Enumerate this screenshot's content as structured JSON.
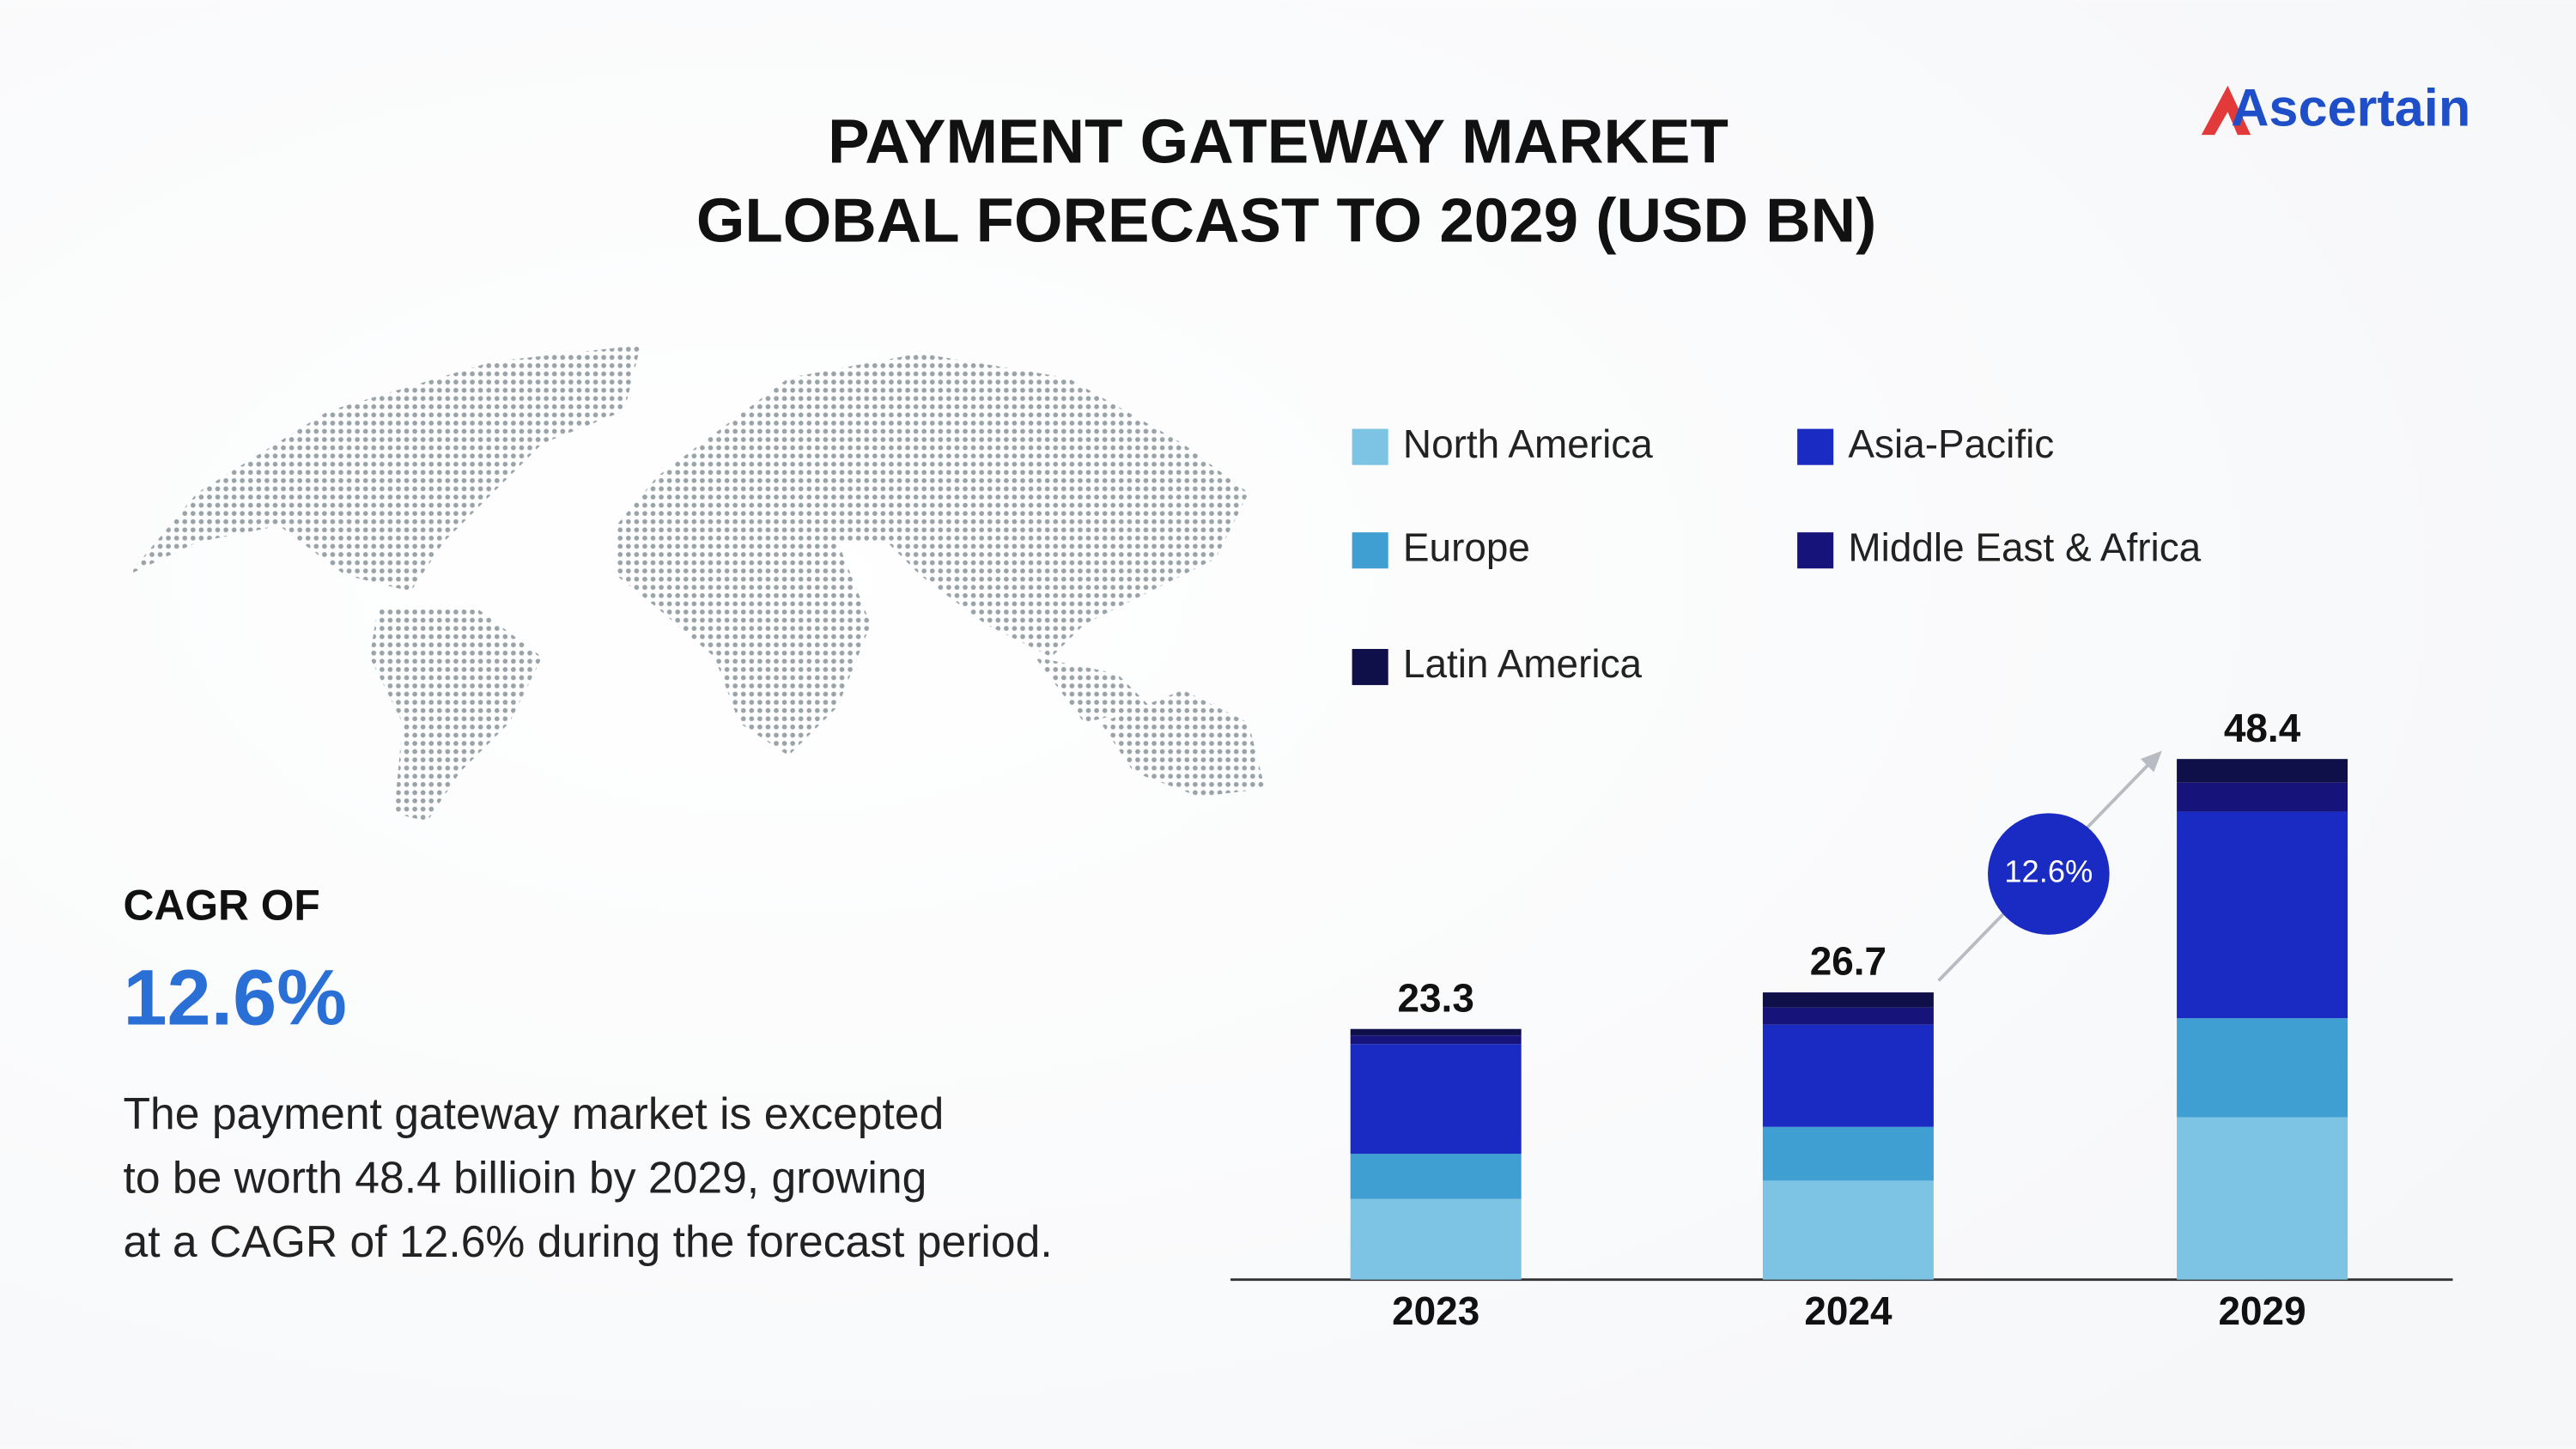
{
  "title_lines": [
    "PAYMENT GATEWAY MARKET",
    "GLOBAL FORECAST TO 2029 (USD BN)"
  ],
  "brand": "Ascertain",
  "cagr_heading": "CAGR OF",
  "cagr_value": "12.6%",
  "description": [
    "The payment gateway market is excepted",
    "to be worth 48.4 billioin by 2029, growing",
    "at a CAGR of 12.6% during  the forecast period."
  ],
  "growth_badge": "12.6%",
  "chart_data": {
    "type": "stacked_bar",
    "categories": [
      "2023",
      "2024",
      "2029"
    ],
    "totals": [
      23.3,
      26.7,
      48.4
    ],
    "series": [
      {
        "name": "North America",
        "color": "#7dc3e3",
        "values": [
          7.5,
          9.2,
          15.1
        ]
      },
      {
        "name": "Europe",
        "color": "#3f9fd2",
        "values": [
          4.2,
          5.0,
          9.2
        ]
      },
      {
        "name": "Asia-Pacific",
        "color": "#1a2bc4",
        "values": [
          10.2,
          9.5,
          19.2
        ]
      },
      {
        "name": "Middle East & Africa",
        "color": "#16137a",
        "values": [
          0.8,
          1.6,
          2.7
        ]
      },
      {
        "name": "Latin America",
        "color": "#0f0f4a",
        "values": [
          0.6,
          1.4,
          2.2
        ]
      }
    ]
  }
}
